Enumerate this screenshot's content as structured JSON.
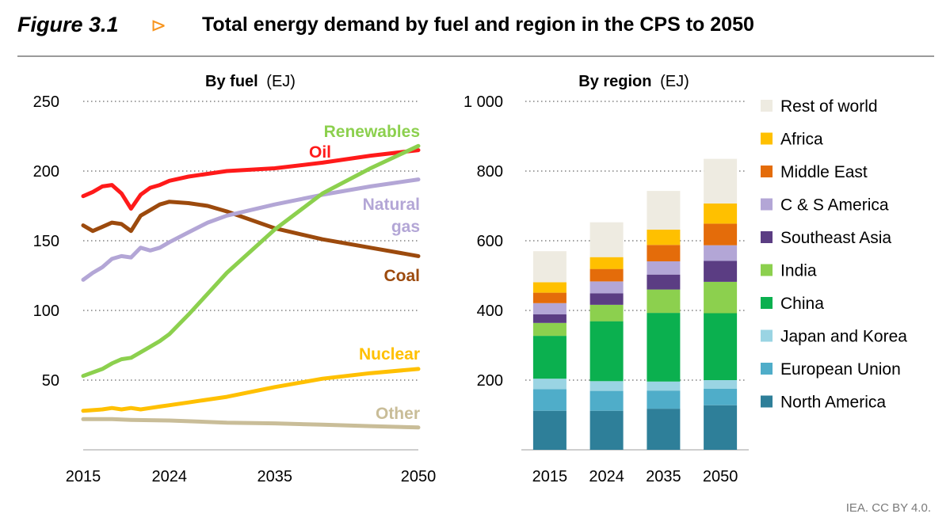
{
  "header": {
    "figure_label": "Figure 3.1",
    "arrow": "⊳",
    "title": "Total energy demand by fuel and region in the CPS to 2050"
  },
  "credit": "IEA. CC BY 4.0.",
  "colors": {
    "renewables": "#8cd04e",
    "oil": "#ff1a1a",
    "coal": "#9c4a0d",
    "natural_gas": "#b3a6d6",
    "nuclear": "#ffc000",
    "other": "#c9bd98",
    "grid": "#a0a0a0"
  },
  "chart_data": [
    {
      "type": "line",
      "title_bold": "By fuel",
      "title_unit": "(EJ)",
      "xlabel": "",
      "ylabel": "EJ",
      "xlim": [
        2015,
        2050
      ],
      "ylim": [
        0,
        250
      ],
      "x_ticks": [
        "2015",
        "2024",
        "2035",
        "2050"
      ],
      "y_ticks": [
        "50",
        "100",
        "150",
        "200",
        "250"
      ],
      "series": [
        {
          "name": "Renewables",
          "key": "renewables",
          "color": "#8cd04e",
          "label_lines": [
            "Renewables"
          ],
          "x": [
            2015,
            2017,
            2018,
            2019,
            2020,
            2021,
            2022,
            2023,
            2024,
            2026,
            2028,
            2030,
            2035,
            2040,
            2045,
            2050
          ],
          "values": [
            53,
            58,
            62,
            65,
            66,
            70,
            74,
            78,
            83,
            97,
            112,
            127,
            158,
            184,
            202,
            218
          ]
        },
        {
          "name": "Oil",
          "key": "oil",
          "color": "#ff1a1a",
          "label_lines": [
            "Oil"
          ],
          "x": [
            2015,
            2016,
            2017,
            2018,
            2019,
            2020,
            2021,
            2022,
            2023,
            2024,
            2026,
            2028,
            2030,
            2035,
            2040,
            2045,
            2050
          ],
          "values": [
            182,
            185,
            189,
            190,
            184,
            173,
            183,
            188,
            190,
            193,
            196,
            198,
            200,
            202,
            206,
            211,
            215
          ]
        },
        {
          "name": "Coal",
          "key": "coal",
          "color": "#9c4a0d",
          "label_lines": [
            "Coal"
          ],
          "x": [
            2015,
            2016,
            2017,
            2018,
            2019,
            2020,
            2021,
            2022,
            2023,
            2024,
            2026,
            2028,
            2030,
            2035,
            2040,
            2045,
            2050
          ],
          "values": [
            161,
            157,
            160,
            163,
            162,
            157,
            168,
            172,
            176,
            178,
            177,
            175,
            171,
            159,
            151,
            145,
            139
          ]
        },
        {
          "name": "Natural gas",
          "key": "natural_gas",
          "color": "#b3a6d6",
          "label_lines": [
            "Natural",
            "gas"
          ],
          "x": [
            2015,
            2016,
            2017,
            2018,
            2019,
            2020,
            2021,
            2022,
            2023,
            2024,
            2026,
            2028,
            2030,
            2035,
            2040,
            2045,
            2050
          ],
          "values": [
            122,
            127,
            131,
            137,
            139,
            138,
            145,
            143,
            145,
            149,
            156,
            163,
            168,
            176,
            183,
            189,
            194
          ]
        },
        {
          "name": "Nuclear",
          "key": "nuclear",
          "color": "#ffc000",
          "label_lines": [
            "Nuclear"
          ],
          "x": [
            2015,
            2017,
            2018,
            2019,
            2020,
            2021,
            2022,
            2023,
            2024,
            2026,
            2028,
            2030,
            2035,
            2040,
            2045,
            2050
          ],
          "values": [
            28,
            29,
            30,
            29,
            30,
            29,
            30,
            31,
            32,
            34,
            36,
            38,
            45,
            51,
            55,
            58
          ]
        },
        {
          "name": "Other",
          "key": "other",
          "color": "#c9bd98",
          "label_lines": [
            "Other"
          ],
          "x": [
            2015,
            2018,
            2020,
            2024,
            2030,
            2035,
            2040,
            2045,
            2050
          ],
          "values": [
            22,
            22,
            21.5,
            21,
            19.5,
            19,
            18,
            17,
            16
          ]
        }
      ]
    },
    {
      "type": "bar",
      "stacked": true,
      "title_bold": "By region",
      "title_unit": "(EJ)",
      "xlabel": "",
      "ylabel": "EJ",
      "ylim": [
        0,
        1000
      ],
      "y_ticks": [
        "200",
        "400",
        "600",
        "800",
        "1 000"
      ],
      "categories": [
        "2015",
        "2024",
        "2035",
        "2050"
      ],
      "series": [
        {
          "name": "North America",
          "color": "#2e7f99",
          "values": [
            112,
            112,
            118,
            128
          ]
        },
        {
          "name": "European Union",
          "color": "#4fadc9",
          "values": [
            62,
            57,
            52,
            47
          ]
        },
        {
          "name": "Japan and Korea",
          "color": "#9ad4e3",
          "values": [
            30,
            28,
            26,
            25
          ]
        },
        {
          "name": "China",
          "color": "#0bb04f",
          "values": [
            123,
            172,
            197,
            192
          ]
        },
        {
          "name": "India",
          "color": "#8cd04e",
          "values": [
            37,
            47,
            67,
            90
          ]
        },
        {
          "name": "Southeast Asia",
          "color": "#5b3d83",
          "values": [
            25,
            33,
            43,
            60
          ]
        },
        {
          "name": "C & S America",
          "color": "#b3a6d6",
          "values": [
            32,
            34,
            38,
            45
          ]
        },
        {
          "name": "Middle East",
          "color": "#e46c0a",
          "values": [
            30,
            36,
            47,
            62
          ]
        },
        {
          "name": "Africa",
          "color": "#ffc000",
          "values": [
            30,
            34,
            44,
            58
          ]
        },
        {
          "name": "Rest of world",
          "color": "#eeebe1",
          "values": [
            89,
            100,
            111,
            128
          ]
        }
      ],
      "legend_order": [
        "Rest of world",
        "Africa",
        "Middle East",
        "C & S America",
        "Southeast Asia",
        "India",
        "China",
        "Japan and Korea",
        "European Union",
        "North America"
      ],
      "legend_position": "right"
    }
  ]
}
